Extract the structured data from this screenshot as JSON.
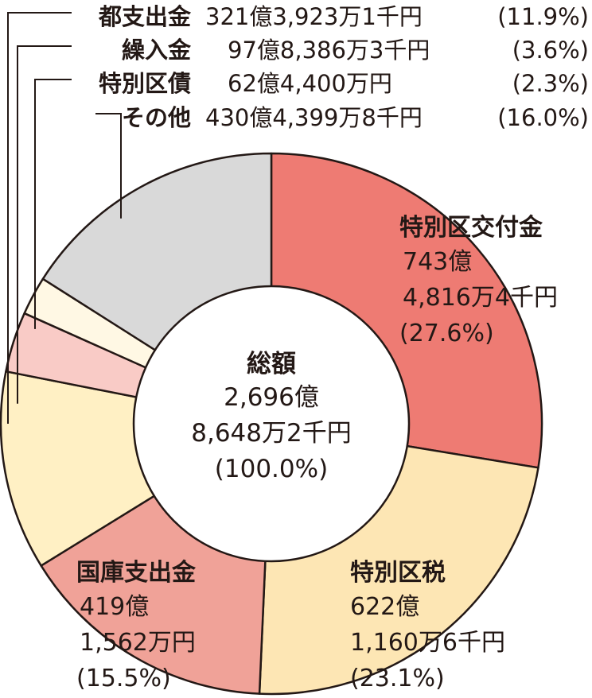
{
  "chart_data": {
    "type": "pie",
    "center_label": {
      "title": "総額",
      "line1": "2,696億",
      "line2": "8,648万2千円",
      "line3": "(100.0%)"
    },
    "slices": [
      {
        "name": "特別区交付金",
        "amount_1": "743億",
        "amount_2": "4,816万4千円",
        "percent_label": "(27.6%)",
        "value": 27.6,
        "color": "#ee7b73"
      },
      {
        "name": "特別区税",
        "amount_1": "622億",
        "amount_2": "1,160万6千円",
        "percent_label": "(23.1%)",
        "value": 23.1,
        "color": "#fde6b4"
      },
      {
        "name": "国庫支出金",
        "amount_1": "419億",
        "amount_2": "1,562万円",
        "percent_label": "(15.5%)",
        "value": 15.5,
        "color": "#f0a298"
      },
      {
        "name": "都支出金",
        "amount_text": "321億3,923万1千円",
        "percent_label": "(11.9%)",
        "value": 11.9,
        "color": "#fff0c4"
      },
      {
        "name": "繰入金",
        "amount_text": "97億8,386万3千円",
        "percent_label": "(3.6%)",
        "value": 3.6,
        "color": "#f9cbc6"
      },
      {
        "name": "特別区債",
        "amount_text": "62億4,400万円",
        "percent_label": "(2.3%)",
        "value": 2.3,
        "color": "#fff8e4"
      },
      {
        "name": "その他",
        "amount_text": "430億4,399万8千円",
        "percent_label": "(16.0%)",
        "value": 16.0,
        "color": "#d9d9d9"
      }
    ]
  }
}
